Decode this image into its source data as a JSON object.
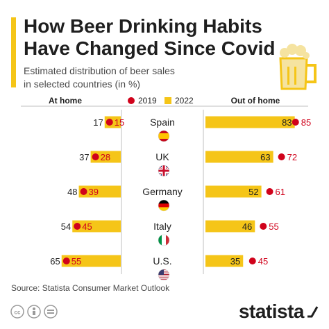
{
  "title_line1": "How Beer Drinking Habits",
  "title_line2": "Have Changed Since Covid",
  "subtitle_line1": "Estimated distribution of beer sales",
  "subtitle_line2": "in selected countries (in %)",
  "source": "Source: Statista Consumer Market Outlook",
  "brand": "statista",
  "colors": {
    "accent": "#f5c518",
    "dot": "#d0021b",
    "text": "#1f1f1f",
    "muted": "#4a4a4a"
  },
  "icons": [
    "beer-mug-icon",
    "cc-icon",
    "by-icon",
    "nd-icon",
    "flag-spain-icon",
    "flag-uk-icon",
    "flag-germany-icon",
    "flag-italy-icon",
    "flag-us-icon",
    "statista-logo-icon"
  ],
  "chart_data": {
    "type": "bar",
    "left_header": "At home",
    "right_header": "Out of home",
    "legend": {
      "series_2019": "2019",
      "series_2022": "2022",
      "placement": "top-center"
    },
    "categories": [
      "Spain",
      "UK",
      "Germany",
      "Italy",
      "U.S."
    ],
    "at_home": {
      "y2019": [
        17,
        37,
        48,
        54,
        65
      ],
      "y2022": [
        15,
        28,
        39,
        45,
        55
      ]
    },
    "out_of_home": {
      "y2019": [
        83,
        63,
        52,
        46,
        35
      ],
      "y2022": [
        85,
        72,
        61,
        55,
        45
      ]
    },
    "xlim": [
      0,
      100
    ]
  }
}
